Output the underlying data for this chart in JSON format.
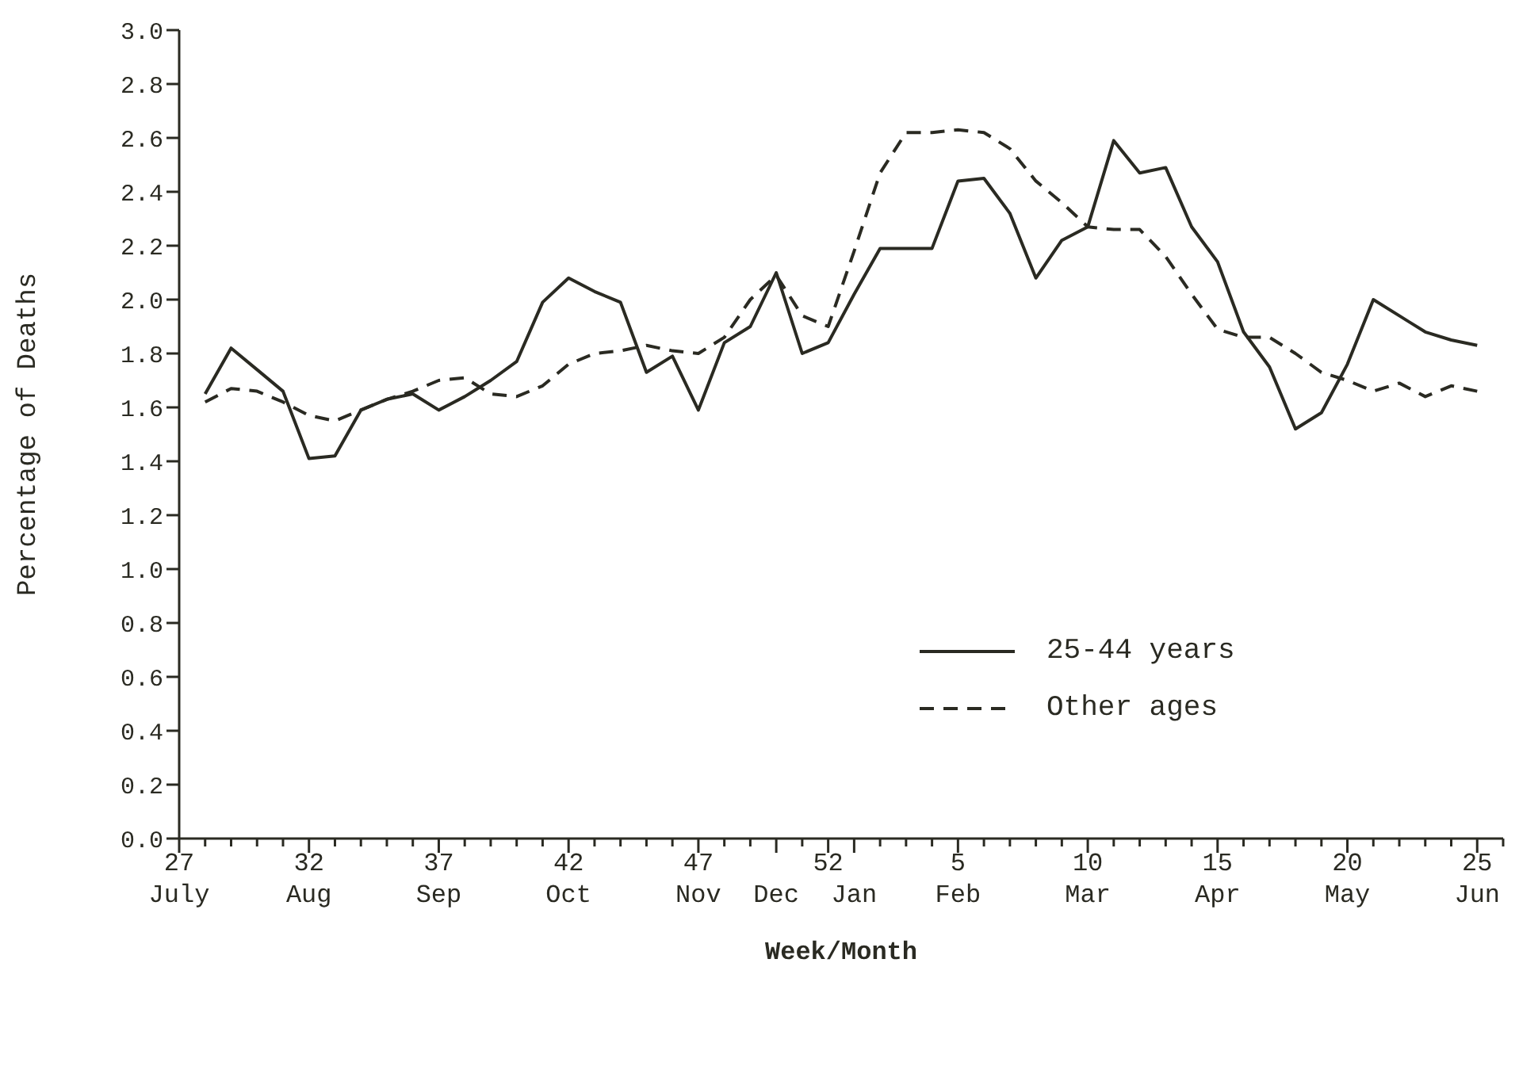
{
  "chart_data": {
    "type": "line",
    "xlabel": "Week/Month",
    "ylabel": "Percentage of Deaths",
    "categories": [
      "27\nJuly",
      null,
      null,
      null,
      null,
      "32\nAug",
      null,
      null,
      null,
      null,
      "37\nSep",
      null,
      null,
      null,
      null,
      "42\nOct",
      null,
      null,
      null,
      null,
      "47\nNov",
      null,
      null,
      "\nDec",
      null,
      "52",
      "\nJan",
      null,
      null,
      null,
      "5\nFeb",
      null,
      null,
      null,
      null,
      "10\nMar",
      null,
      null,
      null,
      null,
      "15\nApr",
      null,
      null,
      null,
      null,
      "20\nMay",
      null,
      null,
      null,
      null,
      "25\nJun",
      null
    ],
    "series": [
      {
        "name": "25-44 years",
        "color": "#2a2a22",
        "line_style": "solid",
        "values": [
          null,
          1.65,
          1.82,
          1.74,
          1.66,
          1.41,
          1.42,
          1.59,
          1.63,
          1.65,
          1.59,
          1.64,
          1.7,
          1.77,
          1.99,
          2.08,
          2.03,
          1.99,
          1.73,
          1.79,
          1.59,
          1.84,
          1.9,
          2.1,
          1.8,
          1.84,
          2.02,
          2.19,
          2.19,
          2.19,
          2.44,
          2.45,
          2.32,
          2.08,
          2.22,
          2.27,
          2.59,
          2.47,
          2.49,
          2.27,
          2.14,
          1.88,
          1.75,
          1.52,
          1.58,
          1.76,
          2.0,
          1.94,
          1.88,
          1.85,
          1.83,
          null
        ]
      },
      {
        "name": "Other ages",
        "color": "#2a2a22",
        "line_style": "dashed",
        "values": [
          null,
          1.62,
          1.67,
          1.66,
          1.62,
          1.57,
          1.55,
          1.59,
          1.63,
          1.66,
          1.7,
          1.71,
          1.65,
          1.64,
          1.68,
          1.76,
          1.8,
          1.81,
          1.83,
          1.81,
          1.8,
          1.86,
          2.0,
          2.09,
          1.94,
          1.9,
          2.18,
          2.47,
          2.62,
          2.62,
          2.63,
          2.62,
          2.56,
          2.44,
          2.36,
          2.27,
          2.26,
          2.26,
          2.16,
          2.02,
          1.89,
          1.86,
          1.86,
          1.8,
          1.73,
          1.7,
          1.66,
          1.69,
          1.64,
          1.68,
          1.66,
          null
        ]
      }
    ],
    "ylim": [
      0,
      3
    ],
    "yticks": [
      {
        "value": 0,
        "label": "0.0"
      },
      {
        "value": 0.2,
        "label": "0.2"
      },
      {
        "value": 0.4,
        "label": "0.4"
      },
      {
        "value": 0.6,
        "label": "0.6"
      },
      {
        "value": 0.8,
        "label": "0.8"
      },
      {
        "value": 1,
        "label": "1.0"
      },
      {
        "value": 1.2,
        "label": "1.2"
      },
      {
        "value": 1.4,
        "label": "1.4"
      },
      {
        "value": 1.6,
        "label": "1.6"
      },
      {
        "value": 1.8,
        "label": "1.8"
      },
      {
        "value": 2,
        "label": "2.0"
      },
      {
        "value": 2.2,
        "label": "2.2"
      },
      {
        "value": 2.4,
        "label": "2.4"
      },
      {
        "value": 2.6,
        "label": "2.6"
      },
      {
        "value": 2.8,
        "label": "2.8"
      },
      {
        "value": 3,
        "label": "3.0"
      }
    ],
    "grid": false,
    "legend": "right",
    "marker": "none"
  }
}
